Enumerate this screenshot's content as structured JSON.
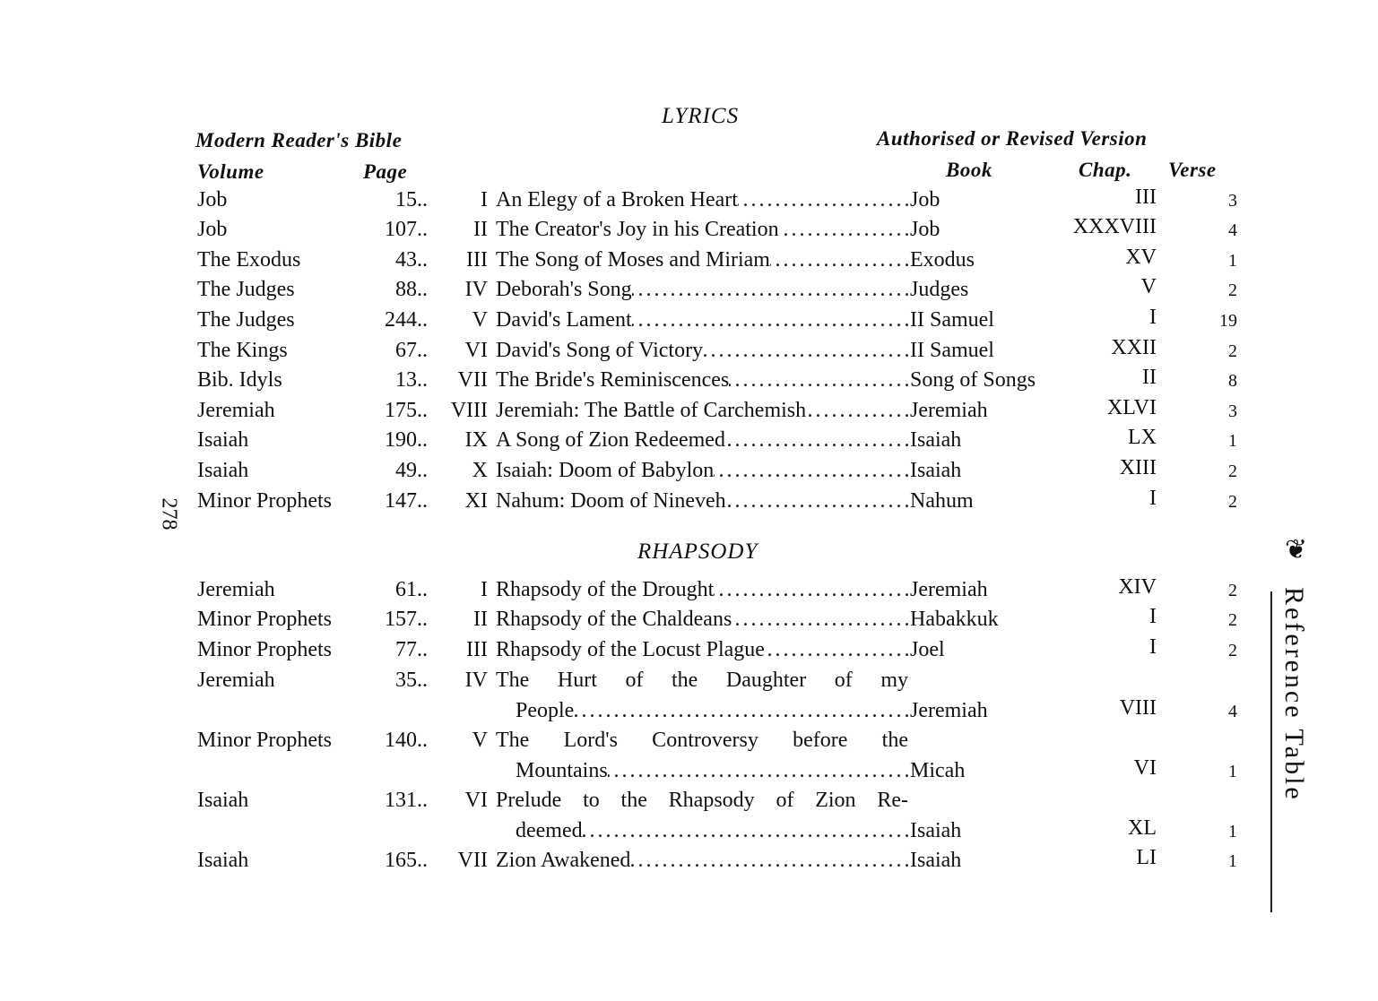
{
  "page_number": "278",
  "running_title": "Reference Table",
  "ornament_icon": "fleuron",
  "headers": {
    "mrb": "Modern Reader's Bible",
    "volume": "Volume",
    "page": "Page",
    "version": "Authorised or Revised Version",
    "book": "Book",
    "chap": "Chap.",
    "verse": "Verse"
  },
  "sections": [
    {
      "title": "LYRICS",
      "rows": [
        {
          "volume": "Job",
          "page": "15",
          "numeral": "I",
          "title": "An Elegy of a Broken Heart",
          "book": "Job",
          "chap": "III",
          "verse": "3"
        },
        {
          "volume": "Job",
          "page": "107",
          "numeral": "II",
          "title": "The Creator's Joy in his Creation",
          "book": "Job",
          "chap": "XXXVIII",
          "verse": "4"
        },
        {
          "volume": "The Exodus",
          "page": "43",
          "numeral": "III",
          "title": "The Song of Moses and Miriam",
          "book": "Exodus",
          "chap": "XV",
          "verse": "1"
        },
        {
          "volume": "The Judges",
          "page": "88",
          "numeral": "IV",
          "title": "Deborah's Song",
          "book": "Judges",
          "chap": "V",
          "verse": "2"
        },
        {
          "volume": "The Judges",
          "page": "244",
          "numeral": "V",
          "title": "David's Lament",
          "book": "II Samuel",
          "chap": "I",
          "verse": "19"
        },
        {
          "volume": "The Kings",
          "page": "67",
          "numeral": "VI",
          "title": "David's Song of Victory",
          "book": "II Samuel",
          "chap": "XXII",
          "verse": "2"
        },
        {
          "volume": "Bib. Idyls",
          "page": "13",
          "numeral": "VII",
          "title": "The Bride's Reminiscences",
          "book": "Song of Songs",
          "chap": "II",
          "verse": "8"
        },
        {
          "volume": "Jeremiah",
          "page": "175",
          "numeral": "VIII",
          "title": "Jeremiah: The Battle of Carchemish",
          "book": "Jeremiah",
          "chap": "XLVI",
          "verse": "3"
        },
        {
          "volume": "Isaiah",
          "page": "190",
          "numeral": "IX",
          "title": "A Song of Zion Redeemed",
          "book": "Isaiah",
          "chap": "LX",
          "verse": "1"
        },
        {
          "volume": "Isaiah",
          "page": "49",
          "numeral": "X",
          "title": "Isaiah: Doom of Babylon",
          "book": "Isaiah",
          "chap": "XIII",
          "verse": "2"
        },
        {
          "volume": "Minor Prophets",
          "page": "147",
          "numeral": "XI",
          "title": "Nahum: Doom of Nineveh",
          "book": "Nahum",
          "chap": "I",
          "verse": "2"
        }
      ]
    },
    {
      "title": "RHAPSODY",
      "rows": [
        {
          "volume": "Jeremiah",
          "page": "61",
          "numeral": "I",
          "title": "Rhapsody of the Drought",
          "book": "Jeremiah",
          "chap": "XIV",
          "verse": "2"
        },
        {
          "volume": "Minor Prophets",
          "page": "157",
          "numeral": "II",
          "title": "Rhapsody of the Chaldeans",
          "book": "Habakkuk",
          "chap": "I",
          "verse": "2"
        },
        {
          "volume": "Minor Prophets",
          "page": "77",
          "numeral": "III",
          "title": "Rhapsody of the Locust Plague",
          "book": "Joel",
          "chap": "I",
          "verse": "2"
        },
        {
          "volume": "Jeremiah",
          "page": "35",
          "numeral": "IV",
          "title": "The Hurt of the Daughter of my",
          "title_cont": "People",
          "book": "Jeremiah",
          "chap": "VIII",
          "verse": "4"
        },
        {
          "volume": "Minor Prophets",
          "page": "140",
          "numeral": "V",
          "title": "The Lord's Controversy before the",
          "title_cont": "Mountains",
          "book": "Micah",
          "chap": "VI",
          "verse": "1"
        },
        {
          "volume": "Isaiah",
          "page": "131",
          "numeral": "VI",
          "title": "Prelude to the Rhapsody of Zion Re-",
          "title_cont": "deemed",
          "book": "Isaiah",
          "chap": "XL",
          "verse": "1"
        },
        {
          "volume": "Isaiah",
          "page": "165",
          "numeral": "VII",
          "title": "Zion Awakened",
          "book": "Isaiah",
          "chap": "LI",
          "verse": "1"
        }
      ]
    }
  ]
}
